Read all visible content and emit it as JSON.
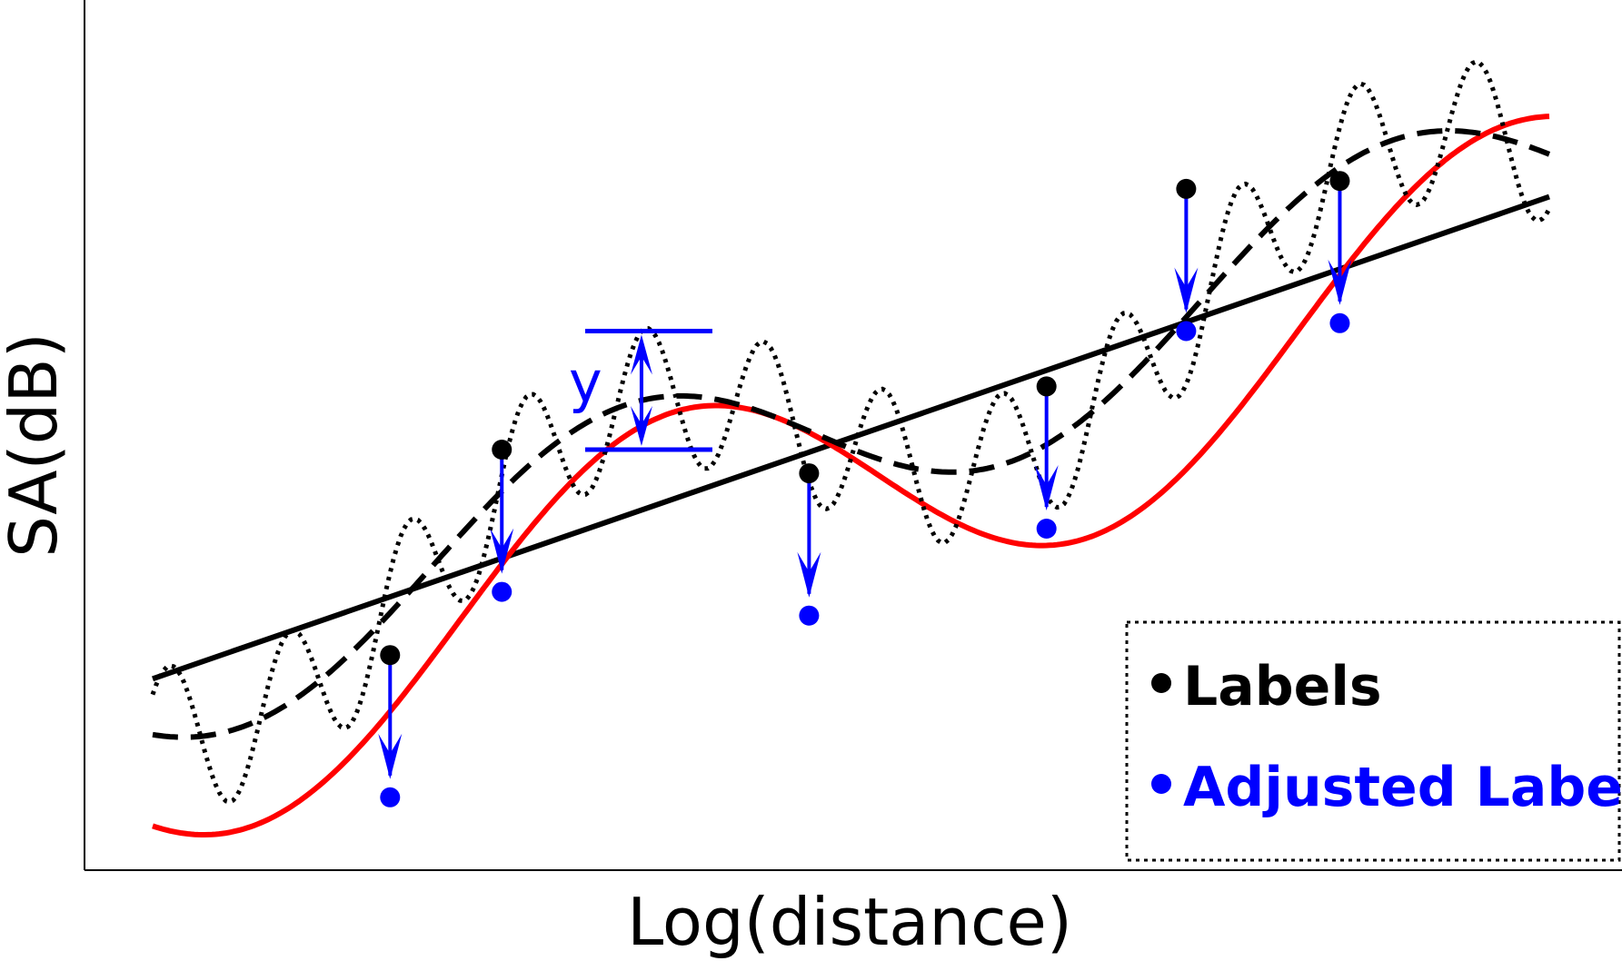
{
  "chart_data": {
    "type": "line",
    "title": "",
    "xlabel": "Log(distance)",
    "ylabel": "SA(dB)",
    "xlim": [
      0,
      100
    ],
    "ylim": [
      0,
      100
    ],
    "ticks": "none",
    "grid": false,
    "legend": {
      "placement": "bottom-right",
      "frame": "dotted",
      "items": [
        {
          "label": "Labels",
          "color": "#000000",
          "marker": "dot"
        },
        {
          "label": "Adjusted Labels",
          "color": "#0000ff",
          "marker": "dot"
        }
      ]
    },
    "annotation": {
      "text": "y",
      "color": "#0000ff",
      "x": 35,
      "y_top": 65,
      "y_bottom": 50
    },
    "series": [
      {
        "style": "solid",
        "color": "#000000",
        "kind": "linear-trend",
        "points": [
          [
            0,
            21
          ],
          [
            100,
            82
          ]
        ]
      },
      {
        "style": "solid",
        "color": "#ff0000",
        "kind": "smooth-wave",
        "amp": 17,
        "period": 60,
        "phase": 0,
        "mode": "red"
      },
      {
        "style": "dashed",
        "color": "#000000",
        "kind": "smooth-wave",
        "amp": 12,
        "period": 55,
        "phase": 3,
        "mode": "dash"
      },
      {
        "style": "dotted",
        "color": "#000000",
        "kind": "oscillating-wave",
        "mode": "dot"
      }
    ],
    "labels": [
      {
        "x": 17,
        "y": 24
      },
      {
        "x": 25,
        "y": 50
      },
      {
        "x": 47,
        "y": 47
      },
      {
        "x": 64,
        "y": 58
      },
      {
        "x": 74,
        "y": 83
      },
      {
        "x": 85,
        "y": 84
      }
    ],
    "adjusted_labels": [
      {
        "x": 17,
        "y": 6
      },
      {
        "x": 25,
        "y": 32
      },
      {
        "x": 47,
        "y": 29
      },
      {
        "x": 64,
        "y": 40
      },
      {
        "x": 74,
        "y": 65
      },
      {
        "x": 85,
        "y": 66
      }
    ]
  },
  "colors": {
    "blue": "#0000ff",
    "red": "#ff0000",
    "black": "#000000"
  }
}
